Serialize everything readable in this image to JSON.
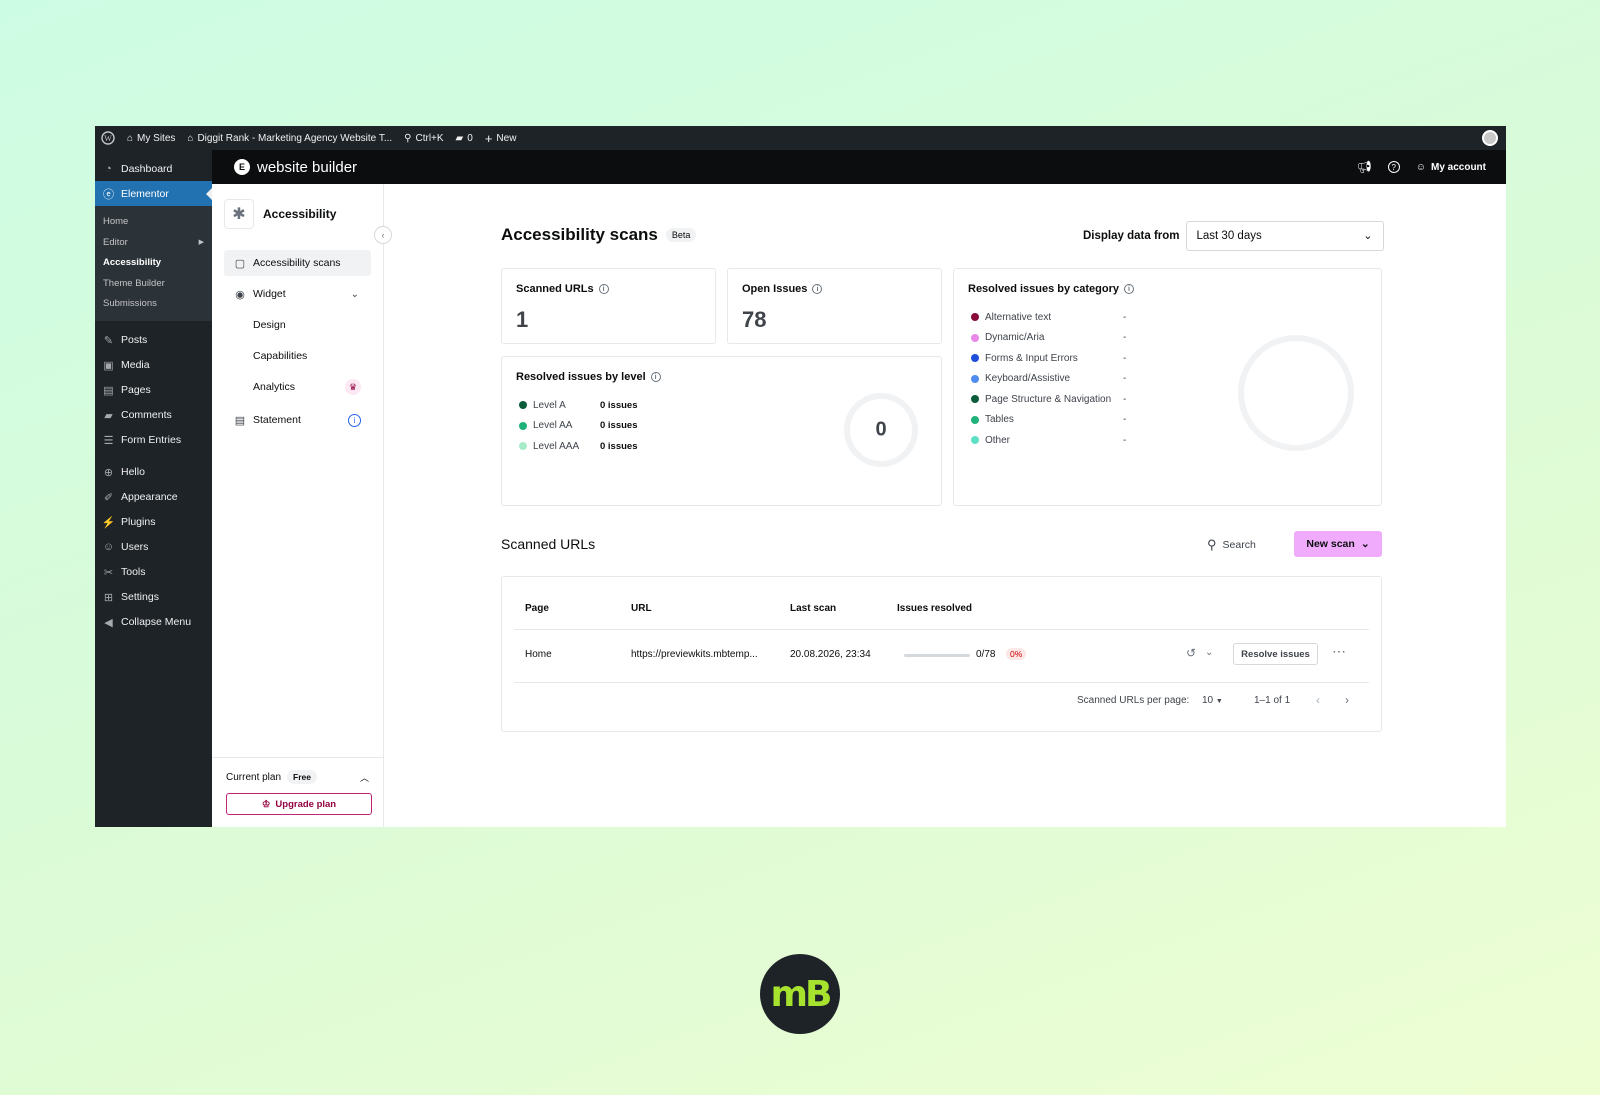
{
  "admin_bar": {
    "my_sites": "My Sites",
    "site_name": "Diggit Rank - Marketing Agency Website T...",
    "search_shortcut": "Ctrl+K",
    "comments_count": "0",
    "new_label": "New"
  },
  "wp_menu": {
    "items_top": [
      {
        "label": "Dashboard",
        "icon": "dashboard-icon"
      },
      {
        "label": "Elementor",
        "icon": "elementor-icon",
        "active": true
      }
    ],
    "submenu": [
      "Home",
      "Editor",
      "Accessibility",
      "Theme Builder",
      "Submissions"
    ],
    "items_mid": [
      {
        "label": "Posts",
        "icon": "pin-icon"
      },
      {
        "label": "Media",
        "icon": "media-icon"
      },
      {
        "label": "Pages",
        "icon": "pages-icon"
      },
      {
        "label": "Comments",
        "icon": "comment-icon"
      },
      {
        "label": "Form Entries",
        "icon": "form-icon"
      }
    ],
    "items_bottom": [
      {
        "label": "Hello",
        "icon": "plus-circle-icon"
      },
      {
        "label": "Appearance",
        "icon": "brush-icon"
      },
      {
        "label": "Plugins",
        "icon": "plugin-icon"
      },
      {
        "label": "Users",
        "icon": "user-icon"
      },
      {
        "label": "Tools",
        "icon": "wrench-icon"
      },
      {
        "label": "Settings",
        "icon": "settings-icon"
      },
      {
        "label": "Collapse Menu",
        "icon": "collapse-icon"
      }
    ]
  },
  "top_bar": {
    "title": "website builder",
    "account": "My account"
  },
  "plugin_sidebar": {
    "title": "Accessibility",
    "nav": {
      "scans": "Accessibility scans",
      "widget": "Widget",
      "design": "Design",
      "capabilities": "Capabilities",
      "analytics": "Analytics",
      "statement": "Statement"
    },
    "plan": {
      "label": "Current plan",
      "badge": "Free",
      "upgrade": "Upgrade plan"
    }
  },
  "main": {
    "title": "Accessibility scans",
    "beta": "Beta",
    "display_label": "Display data from",
    "display_value": "Last 30 days",
    "cards": {
      "scanned_urls": {
        "label": "Scanned URLs",
        "value": "1"
      },
      "open_issues": {
        "label": "Open Issues",
        "value": "78"
      },
      "by_level": {
        "label": "Resolved issues by level",
        "total": "0",
        "levels": [
          {
            "name": "Level A",
            "value": "0 issues",
            "color": "#0a5c3b"
          },
          {
            "name": "Level AA",
            "value": "0 issues",
            "color": "#1fb37a"
          },
          {
            "name": "Level AAA",
            "value": "0 issues",
            "color": "#a8ebc9"
          }
        ]
      },
      "by_category": {
        "label": "Resolved issues by category",
        "categories": [
          {
            "name": "Alternative text",
            "value": "-",
            "color": "#8a0a3c"
          },
          {
            "name": "Dynamic/Aria",
            "value": "-",
            "color": "#e889e8"
          },
          {
            "name": "Forms & Input Errors",
            "value": "-",
            "color": "#1d4fd8"
          },
          {
            "name": "Keyboard/Assistive",
            "value": "-",
            "color": "#4f8bf0"
          },
          {
            "name": "Page Structure & Navigation",
            "value": "-",
            "color": "#0a5c3b"
          },
          {
            "name": "Tables",
            "value": "-",
            "color": "#1fb37a"
          },
          {
            "name": "Other",
            "value": "-",
            "color": "#5ee0c6"
          }
        ]
      }
    },
    "scanned": {
      "title": "Scanned URLs",
      "search": "Search",
      "new_scan": "New scan",
      "columns": {
        "page": "Page",
        "url": "URL",
        "last_scan": "Last scan",
        "issues": "Issues resolved"
      },
      "rows": [
        {
          "page": "Home",
          "url": "https://previewkits.mbtemp...",
          "last_scan": "20.08.2026, 23:34",
          "issues": "0/78",
          "pct": "0%",
          "action": "Resolve issues"
        }
      ],
      "pager": {
        "per_page_label": "Scanned URLs per page:",
        "per_page": "10",
        "range": "1–1 of 1"
      }
    }
  },
  "watermark": "mB"
}
